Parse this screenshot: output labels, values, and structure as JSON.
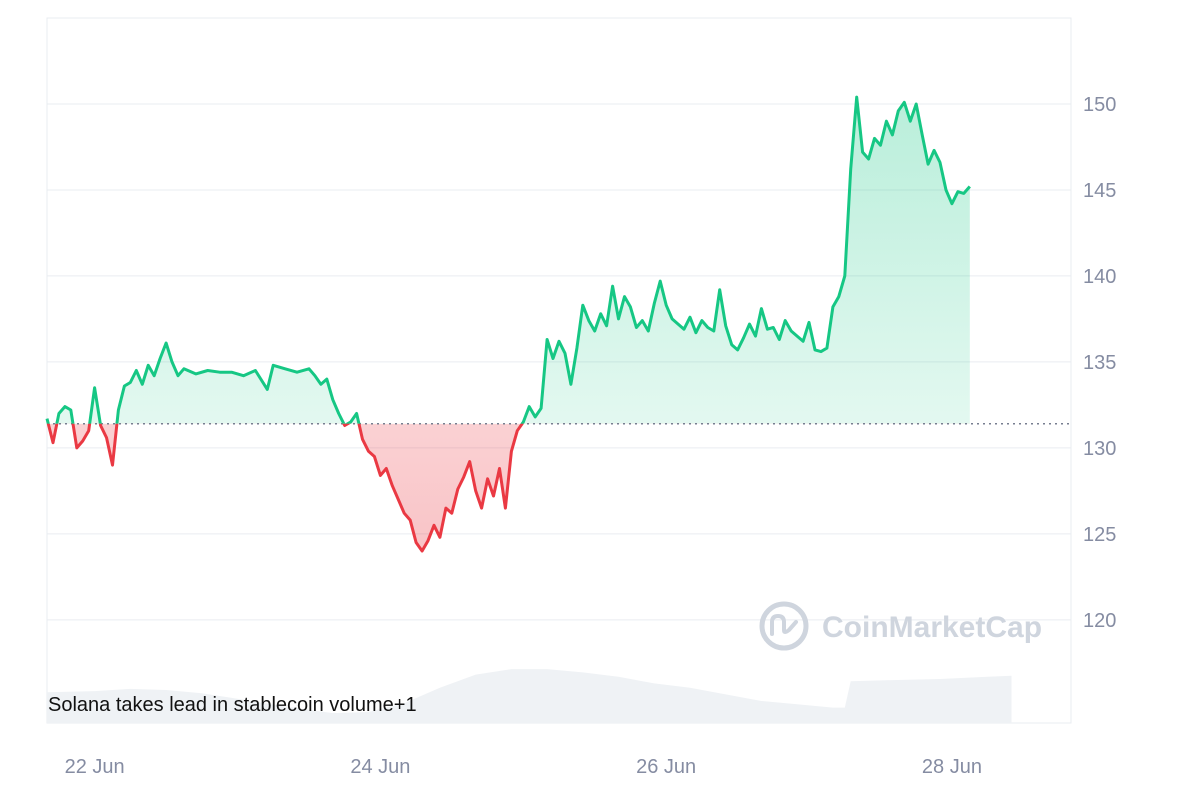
{
  "watermark": {
    "text": "CoinMarketCap",
    "icon": "coinmarketcap-logo-icon"
  },
  "annotation": "Solana takes lead in stablecoin volume+1",
  "colors": {
    "up": "#16c784",
    "down": "#ea3943",
    "up_fill": "#16c784",
    "down_fill": "#ea3943",
    "grid": "#e9ecf1",
    "volume": "#eff2f5",
    "axis_text": "#858ca2",
    "baseline": "#777e90"
  },
  "chart_data": {
    "type": "area",
    "title": "",
    "xlabel": "",
    "ylabel": "",
    "ylim": [
      114,
      155
    ],
    "yticks": [
      120,
      125,
      130,
      135,
      140,
      145,
      150
    ],
    "xlim": [
      "2024-06-21T16:00",
      "2024-06-28T20:00"
    ],
    "xticks": [
      {
        "x": "2024-06-22T00:00",
        "label": "22 Jun"
      },
      {
        "x": "2024-06-24T00:00",
        "label": "24 Jun"
      },
      {
        "x": "2024-06-26T00:00",
        "label": "26 Jun"
      },
      {
        "x": "2024-06-28T00:00",
        "label": "28 Jun"
      }
    ],
    "baseline": 131.4,
    "grid": true,
    "y_axis_position": "right",
    "series": [
      {
        "values": [
          [
            "2024-06-21T16:00",
            131.7
          ],
          [
            "2024-06-21T17:00",
            130.3
          ],
          [
            "2024-06-21T18:00",
            132.0
          ],
          [
            "2024-06-21T19:00",
            132.4
          ],
          [
            "2024-06-21T20:00",
            132.2
          ],
          [
            "2024-06-21T21:00",
            130.0
          ],
          [
            "2024-06-21T22:00",
            130.4
          ],
          [
            "2024-06-21T23:00",
            131.0
          ],
          [
            "2024-06-22T00:00",
            133.5
          ],
          [
            "2024-06-22T01:00",
            131.3
          ],
          [
            "2024-06-22T02:00",
            130.6
          ],
          [
            "2024-06-22T03:00",
            129.0
          ],
          [
            "2024-06-22T04:00",
            132.2
          ],
          [
            "2024-06-22T05:00",
            133.6
          ],
          [
            "2024-06-22T06:00",
            133.8
          ],
          [
            "2024-06-22T07:00",
            134.5
          ],
          [
            "2024-06-22T08:00",
            133.7
          ],
          [
            "2024-06-22T09:00",
            134.8
          ],
          [
            "2024-06-22T10:00",
            134.2
          ],
          [
            "2024-06-22T11:00",
            135.2
          ],
          [
            "2024-06-22T12:00",
            136.1
          ],
          [
            "2024-06-22T13:00",
            135.0
          ],
          [
            "2024-06-22T14:00",
            134.2
          ],
          [
            "2024-06-22T15:00",
            134.6
          ],
          [
            "2024-06-22T17:00",
            134.3
          ],
          [
            "2024-06-22T19:00",
            134.5
          ],
          [
            "2024-06-22T21:00",
            134.4
          ],
          [
            "2024-06-22T23:00",
            134.4
          ],
          [
            "2024-06-23T01:00",
            134.2
          ],
          [
            "2024-06-23T03:00",
            134.5
          ],
          [
            "2024-06-23T05:00",
            133.4
          ],
          [
            "2024-06-23T06:00",
            134.8
          ],
          [
            "2024-06-23T08:00",
            134.6
          ],
          [
            "2024-06-23T10:00",
            134.4
          ],
          [
            "2024-06-23T12:00",
            134.6
          ],
          [
            "2024-06-23T13:00",
            134.2
          ],
          [
            "2024-06-23T14:00",
            133.7
          ],
          [
            "2024-06-23T15:00",
            134.0
          ],
          [
            "2024-06-23T16:00",
            132.8
          ],
          [
            "2024-06-23T17:00",
            132.0
          ],
          [
            "2024-06-23T18:00",
            131.3
          ],
          [
            "2024-06-23T19:00",
            131.5
          ],
          [
            "2024-06-23T20:00",
            132.0
          ],
          [
            "2024-06-23T21:00",
            130.5
          ],
          [
            "2024-06-23T22:00",
            129.8
          ],
          [
            "2024-06-23T23:00",
            129.5
          ],
          [
            "2024-06-24T00:00",
            128.4
          ],
          [
            "2024-06-24T01:00",
            128.8
          ],
          [
            "2024-06-24T02:00",
            127.8
          ],
          [
            "2024-06-24T03:00",
            127.0
          ],
          [
            "2024-06-24T04:00",
            126.2
          ],
          [
            "2024-06-24T05:00",
            125.8
          ],
          [
            "2024-06-24T06:00",
            124.5
          ],
          [
            "2024-06-24T07:00",
            124.0
          ],
          [
            "2024-06-24T08:00",
            124.6
          ],
          [
            "2024-06-24T09:00",
            125.5
          ],
          [
            "2024-06-24T10:00",
            124.8
          ],
          [
            "2024-06-24T11:00",
            126.5
          ],
          [
            "2024-06-24T12:00",
            126.2
          ],
          [
            "2024-06-24T13:00",
            127.6
          ],
          [
            "2024-06-24T14:00",
            128.3
          ],
          [
            "2024-06-24T15:00",
            129.2
          ],
          [
            "2024-06-24T16:00",
            127.5
          ],
          [
            "2024-06-24T17:00",
            126.5
          ],
          [
            "2024-06-24T18:00",
            128.2
          ],
          [
            "2024-06-24T19:00",
            127.2
          ],
          [
            "2024-06-24T20:00",
            128.8
          ],
          [
            "2024-06-24T21:00",
            126.5
          ],
          [
            "2024-06-24T22:00",
            129.8
          ],
          [
            "2024-06-24T23:00",
            131.0
          ],
          [
            "2024-06-25T00:00",
            131.5
          ],
          [
            "2024-06-25T01:00",
            132.4
          ],
          [
            "2024-06-25T02:00",
            131.8
          ],
          [
            "2024-06-25T03:00",
            132.3
          ],
          [
            "2024-06-25T04:00",
            136.3
          ],
          [
            "2024-06-25T05:00",
            135.2
          ],
          [
            "2024-06-25T06:00",
            136.2
          ],
          [
            "2024-06-25T07:00",
            135.5
          ],
          [
            "2024-06-25T08:00",
            133.7
          ],
          [
            "2024-06-25T09:00",
            135.8
          ],
          [
            "2024-06-25T10:00",
            138.3
          ],
          [
            "2024-06-25T11:00",
            137.4
          ],
          [
            "2024-06-25T12:00",
            136.8
          ],
          [
            "2024-06-25T13:00",
            137.8
          ],
          [
            "2024-06-25T14:00",
            137.1
          ],
          [
            "2024-06-25T15:00",
            139.4
          ],
          [
            "2024-06-25T16:00",
            137.5
          ],
          [
            "2024-06-25T17:00",
            138.8
          ],
          [
            "2024-06-25T18:00",
            138.2
          ],
          [
            "2024-06-25T19:00",
            137.0
          ],
          [
            "2024-06-25T20:00",
            137.4
          ],
          [
            "2024-06-25T21:00",
            136.8
          ],
          [
            "2024-06-25T22:00",
            138.4
          ],
          [
            "2024-06-25T23:00",
            139.7
          ],
          [
            "2024-06-26T00:00",
            138.3
          ],
          [
            "2024-06-26T01:00",
            137.5
          ],
          [
            "2024-06-26T02:00",
            137.2
          ],
          [
            "2024-06-26T03:00",
            136.9
          ],
          [
            "2024-06-26T04:00",
            137.6
          ],
          [
            "2024-06-26T05:00",
            136.7
          ],
          [
            "2024-06-26T06:00",
            137.4
          ],
          [
            "2024-06-26T07:00",
            137.0
          ],
          [
            "2024-06-26T08:00",
            136.8
          ],
          [
            "2024-06-26T09:00",
            139.2
          ],
          [
            "2024-06-26T10:00",
            137.1
          ],
          [
            "2024-06-26T11:00",
            136.0
          ],
          [
            "2024-06-26T12:00",
            135.7
          ],
          [
            "2024-06-26T13:00",
            136.4
          ],
          [
            "2024-06-26T14:00",
            137.2
          ],
          [
            "2024-06-26T15:00",
            136.5
          ],
          [
            "2024-06-26T16:00",
            138.1
          ],
          [
            "2024-06-26T17:00",
            136.9
          ],
          [
            "2024-06-26T18:00",
            137.0
          ],
          [
            "2024-06-26T19:00",
            136.3
          ],
          [
            "2024-06-26T20:00",
            137.4
          ],
          [
            "2024-06-26T21:00",
            136.8
          ],
          [
            "2024-06-26T22:00",
            136.5
          ],
          [
            "2024-06-26T23:00",
            136.2
          ],
          [
            "2024-06-27T00:00",
            137.3
          ],
          [
            "2024-06-27T01:00",
            135.7
          ],
          [
            "2024-06-27T02:00",
            135.6
          ],
          [
            "2024-06-27T03:00",
            135.8
          ],
          [
            "2024-06-27T04:00",
            138.2
          ],
          [
            "2024-06-27T05:00",
            138.8
          ],
          [
            "2024-06-27T06:00",
            140.0
          ],
          [
            "2024-06-27T07:00",
            146.2
          ],
          [
            "2024-06-27T08:00",
            150.4
          ],
          [
            "2024-06-27T09:00",
            147.2
          ],
          [
            "2024-06-27T10:00",
            146.8
          ],
          [
            "2024-06-27T11:00",
            148.0
          ],
          [
            "2024-06-27T12:00",
            147.6
          ],
          [
            "2024-06-27T13:00",
            149.0
          ],
          [
            "2024-06-27T14:00",
            148.2
          ],
          [
            "2024-06-27T15:00",
            149.6
          ],
          [
            "2024-06-27T16:00",
            150.1
          ],
          [
            "2024-06-27T17:00",
            149.0
          ],
          [
            "2024-06-27T18:00",
            150.0
          ],
          [
            "2024-06-27T19:00",
            148.2
          ],
          [
            "2024-06-27T20:00",
            146.5
          ],
          [
            "2024-06-27T21:00",
            147.3
          ],
          [
            "2024-06-27T22:00",
            146.6
          ],
          [
            "2024-06-27T23:00",
            145.0
          ],
          [
            "2024-06-28T00:00",
            144.2
          ],
          [
            "2024-06-28T01:00",
            144.9
          ],
          [
            "2024-06-28T02:00",
            144.8
          ],
          [
            "2024-06-28T03:00",
            145.2
          ]
        ]
      }
    ],
    "volume": [
      [
        "2024-06-21T16:00",
        0.28
      ],
      [
        "2024-06-22T00:00",
        0.29
      ],
      [
        "2024-06-22T06:00",
        0.31
      ],
      [
        "2024-06-22T12:00",
        0.3
      ],
      [
        "2024-06-22T18:00",
        0.27
      ],
      [
        "2024-06-23T00:00",
        0.22
      ],
      [
        "2024-06-23T08:00",
        0.15
      ],
      [
        "2024-06-23T16:00",
        0.09
      ],
      [
        "2024-06-23T22:00",
        0.1
      ],
      [
        "2024-06-24T04:00",
        0.18
      ],
      [
        "2024-06-24T10:00",
        0.32
      ],
      [
        "2024-06-24T16:00",
        0.44
      ],
      [
        "2024-06-24T22:00",
        0.49
      ],
      [
        "2024-06-25T04:00",
        0.49
      ],
      [
        "2024-06-25T10:00",
        0.46
      ],
      [
        "2024-06-25T16:00",
        0.42
      ],
      [
        "2024-06-25T22:00",
        0.36
      ],
      [
        "2024-06-26T04:00",
        0.32
      ],
      [
        "2024-06-26T10:00",
        0.26
      ],
      [
        "2024-06-26T16:00",
        0.2
      ],
      [
        "2024-06-26T22:00",
        0.17
      ],
      [
        "2024-06-27T04:00",
        0.14
      ],
      [
        "2024-06-27T06:00",
        0.14
      ],
      [
        "2024-06-27T07:00",
        0.38
      ],
      [
        "2024-06-27T14:00",
        0.39
      ],
      [
        "2024-06-27T22:00",
        0.4
      ],
      [
        "2024-06-28T06:00",
        0.42
      ],
      [
        "2024-06-28T10:00",
        0.43
      ]
    ]
  }
}
